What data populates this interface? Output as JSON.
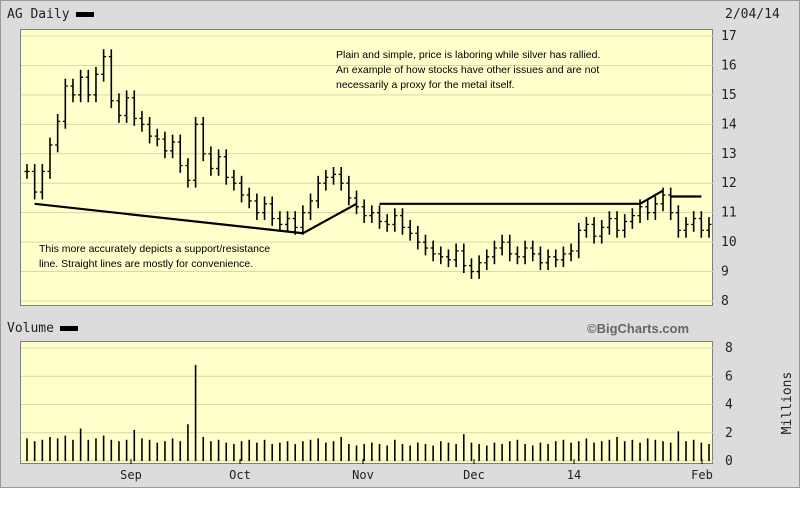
{
  "header": {
    "symbol_label": "AG Daily",
    "date": "2/04/14",
    "volume_label": "Volume",
    "brand": "©BigCharts.com"
  },
  "annotations": {
    "top_note": [
      "Plain and simple, price is laboring while silver has rallied.",
      "An example of how stocks have other issues and are not",
      "necessarily a proxy for the metal itself."
    ],
    "bottom_note": [
      "This more accurately depicts a support/resistance",
      "line.  Straight lines are mostly for convenience."
    ]
  },
  "chart_data": [
    {
      "type": "ohlc",
      "title": "AG Daily",
      "ylim": [
        8,
        17
      ],
      "y_ticks": [
        8,
        9,
        10,
        11,
        12,
        13,
        14,
        15,
        16,
        17
      ],
      "x_ticks": [
        "Sep",
        "Oct",
        "Nov",
        "Dec",
        "14",
        "Feb"
      ],
      "close": [
        12.4,
        11.7,
        12.4,
        13.3,
        14.1,
        15.3,
        15.0,
        15.6,
        15.0,
        15.7,
        16.3,
        14.8,
        14.3,
        14.9,
        14.2,
        14.0,
        13.6,
        13.5,
        13.1,
        13.4,
        12.6,
        12.1,
        14.0,
        13.0,
        12.5,
        12.9,
        12.2,
        12.0,
        11.6,
        11.4,
        11.0,
        11.3,
        10.8,
        10.6,
        10.8,
        10.5,
        11.0,
        11.4,
        12.0,
        12.2,
        12.3,
        12.0,
        11.5,
        11.2,
        10.9,
        11.0,
        10.7,
        10.6,
        10.9,
        10.5,
        10.3,
        10.0,
        9.8,
        9.6,
        9.5,
        9.4,
        9.7,
        9.2,
        9.0,
        9.3,
        9.5,
        9.8,
        10.0,
        9.6,
        9.5,
        9.8,
        9.6,
        9.3,
        9.5,
        9.4,
        9.6,
        9.7,
        10.4,
        10.6,
        10.2,
        10.5,
        10.8,
        10.4,
        10.7,
        10.9,
        11.2,
        11.0,
        11.3,
        11.6,
        11.0,
        10.4,
        10.6,
        10.8,
        10.4,
        10.6
      ],
      "overlay_lines": [
        {
          "points": [
            [
              11.3,
              11.3
            ],
            [
              10.5,
              10.3
            ],
            [
              11.3,
              11.3
            ]
          ],
          "label": ""
        }
      ]
    },
    {
      "type": "bar",
      "title": "Volume",
      "ylabel": "Millions",
      "ylim": [
        0,
        8
      ],
      "y_ticks": [
        0,
        2,
        4,
        6,
        8
      ],
      "values": [
        1.6,
        1.4,
        1.5,
        1.7,
        1.6,
        1.8,
        1.5,
        2.3,
        1.5,
        1.6,
        1.8,
        1.5,
        1.4,
        1.5,
        2.2,
        1.6,
        1.5,
        1.3,
        1.4,
        1.6,
        1.4,
        2.6,
        6.8,
        1.7,
        1.4,
        1.5,
        1.3,
        1.2,
        1.4,
        1.5,
        1.3,
        1.5,
        1.2,
        1.3,
        1.4,
        1.2,
        1.4,
        1.5,
        1.6,
        1.3,
        1.4,
        1.7,
        1.2,
        1.1,
        1.2,
        1.3,
        1.2,
        1.1,
        1.5,
        1.2,
        1.1,
        1.3,
        1.2,
        1.1,
        1.4,
        1.3,
        1.2,
        1.9,
        1.3,
        1.2,
        1.1,
        1.3,
        1.2,
        1.4,
        1.5,
        1.2,
        1.1,
        1.3,
        1.2,
        1.4,
        1.5,
        1.3,
        1.4,
        1.6,
        1.3,
        1.4,
        1.5,
        1.7,
        1.4,
        1.5,
        1.3,
        1.6,
        1.5,
        1.4,
        1.3,
        2.1,
        1.4,
        1.5,
        1.3,
        1.2
      ]
    }
  ]
}
